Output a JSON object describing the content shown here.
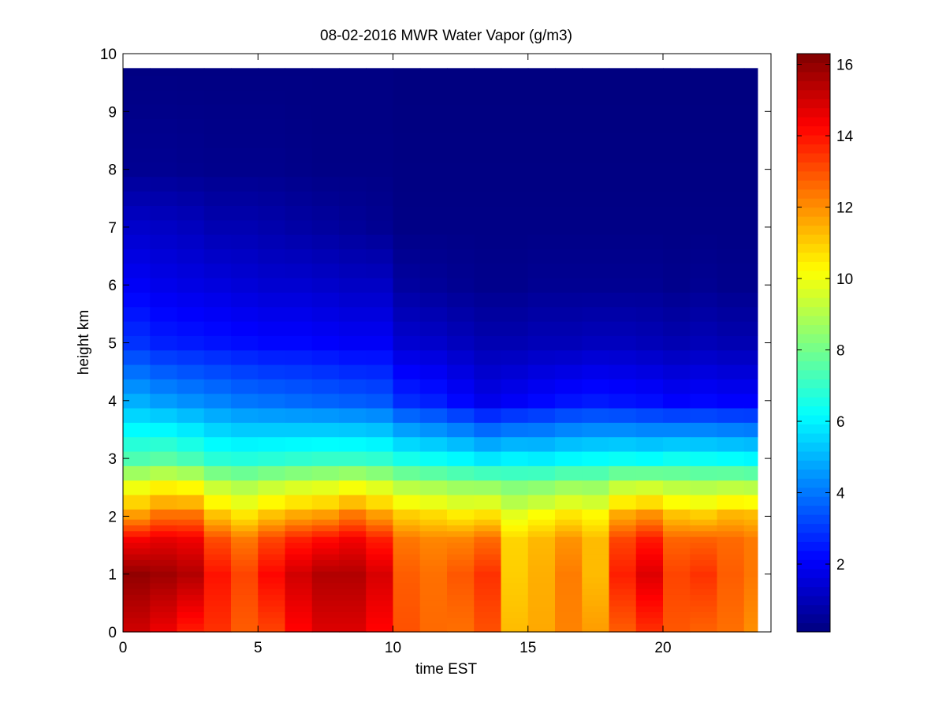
{
  "chart_data": {
    "type": "heatmap",
    "title": "08-02-2016 MWR Water Vapor (g/m3)",
    "xlabel": "time EST",
    "ylabel": "height km",
    "xlim": [
      0,
      24
    ],
    "ylim": [
      0,
      10
    ],
    "x_ticks": [
      "0",
      "5",
      "10",
      "15",
      "20"
    ],
    "y_ticks": [
      "0",
      "1",
      "2",
      "3",
      "4",
      "5",
      "6",
      "7",
      "8",
      "9",
      "10"
    ],
    "colorbar": {
      "colormap": "jet",
      "range": [
        0.1,
        16.3
      ],
      "ticks": [
        "2",
        "4",
        "6",
        "8",
        "10",
        "12",
        "14",
        "16"
      ]
    },
    "x_centers": [
      0.5,
      1.5,
      2.5,
      3.5,
      4.5,
      5.5,
      6.5,
      7.5,
      8.5,
      9.5,
      10.5,
      11.5,
      12.5,
      13.5,
      14.5,
      15.5,
      16.5,
      17.5,
      18.5,
      19.5,
      20.5,
      21.5,
      22.5,
      23.5
    ],
    "y_levels": [
      0,
      0.1,
      0.2,
      0.3,
      0.4,
      0.5,
      0.6,
      0.7,
      0.8,
      0.9,
      1.0,
      1.1,
      1.2,
      1.3,
      1.4,
      1.5,
      1.6,
      1.7,
      1.8,
      1.9,
      2.0,
      2.25,
      2.5,
      2.75,
      3.0,
      3.25,
      3.5,
      3.75,
      4.0,
      4.25,
      4.5,
      4.75,
      5.0,
      5.25,
      5.5,
      5.75,
      6.0,
      6.25,
      6.5,
      6.75,
      7.0,
      7.25,
      7.5,
      7.75,
      8.0,
      8.25,
      8.5,
      8.75,
      9.0,
      9.25,
      9.5,
      9.75
    ],
    "profiles": {
      "surface": [
        15.0,
        14.5,
        13.8,
        13.5,
        12.8,
        13.2,
        14.2,
        14.8,
        14.8,
        14.2,
        13.0,
        12.6,
        12.5,
        13.0,
        11.3,
        11.6,
        12.2,
        11.8,
        12.8,
        13.5,
        12.9,
        12.7,
        12.5,
        12.0
      ],
      "peak": [
        16.0,
        15.8,
        15.5,
        14.0,
        13.2,
        14.2,
        15.0,
        15.5,
        15.5,
        14.9,
        12.8,
        12.5,
        12.9,
        13.5,
        11.0,
        11.5,
        12.3,
        11.3,
        13.8,
        14.8,
        13.2,
        13.5,
        12.8,
        12.4
      ],
      "at2km": [
        11.8,
        12.5,
        12.5,
        11.2,
        10.6,
        11.2,
        11.6,
        11.8,
        12.4,
        11.8,
        11.0,
        10.8,
        10.5,
        10.7,
        9.8,
        10.2,
        10.6,
        10.3,
        11.6,
        12.0,
        11.2,
        11.0,
        11.4,
        11.3
      ],
      "at3km": [
        7.4,
        7.6,
        7.3,
        6.8,
        6.7,
        6.8,
        6.9,
        7.0,
        7.0,
        6.9,
        6.5,
        6.3,
        6.1,
        5.8,
        6.0,
        5.9,
        6.1,
        6.2,
        6.3,
        6.2,
        6.4,
        6.3,
        6.2,
        6.1
      ],
      "at4km": [
        4.9,
        4.6,
        4.4,
        4.2,
        4.0,
        3.9,
        3.8,
        3.7,
        3.6,
        3.5,
        2.8,
        2.6,
        2.2,
        1.8,
        2.0,
        2.2,
        2.4,
        2.5,
        2.4,
        2.3,
        2.1,
        2.2,
        2.1,
        2.1
      ],
      "at5km": [
        2.9,
        2.6,
        2.5,
        2.4,
        2.3,
        2.2,
        2.2,
        2.1,
        2.0,
        2.0,
        1.4,
        1.3,
        1.1,
        0.9,
        0.9,
        1.0,
        1.0,
        1.1,
        1.1,
        1.0,
        0.9,
        1.0,
        0.9,
        0.9
      ],
      "at6km": [
        2.0,
        1.8,
        1.7,
        1.6,
        1.5,
        1.4,
        1.4,
        1.3,
        1.2,
        1.2,
        0.6,
        0.5,
        0.4,
        0.3,
        0.3,
        0.4,
        0.4,
        0.4,
        0.4,
        0.4,
        0.3,
        0.4,
        0.3,
        0.3
      ],
      "at7km": [
        1.3,
        1.2,
        1.1,
        0.9,
        0.9,
        0.8,
        0.7,
        0.6,
        0.5,
        0.4,
        0.2,
        0.2,
        0.2,
        0.2,
        0.2,
        0.2,
        0.2,
        0.2,
        0.2,
        0.2,
        0.2,
        0.2,
        0.2,
        0.2
      ],
      "at8km": [
        0.4,
        0.4,
        0.35,
        0.3,
        0.3,
        0.3,
        0.25,
        0.2,
        0.2,
        0.2,
        0.15,
        0.15,
        0.15,
        0.15,
        0.15,
        0.15,
        0.15,
        0.15,
        0.15,
        0.15,
        0.15,
        0.15,
        0.15,
        0.15
      ],
      "at9_75km": [
        0.15,
        0.15,
        0.15,
        0.15,
        0.15,
        0.15,
        0.15,
        0.15,
        0.15,
        0.15,
        0.1,
        0.1,
        0.1,
        0.1,
        0.1,
        0.1,
        0.1,
        0.1,
        0.1,
        0.1,
        0.1,
        0.1,
        0.1,
        0.1
      ]
    },
    "grid": false,
    "legend": "colorbar-right"
  }
}
